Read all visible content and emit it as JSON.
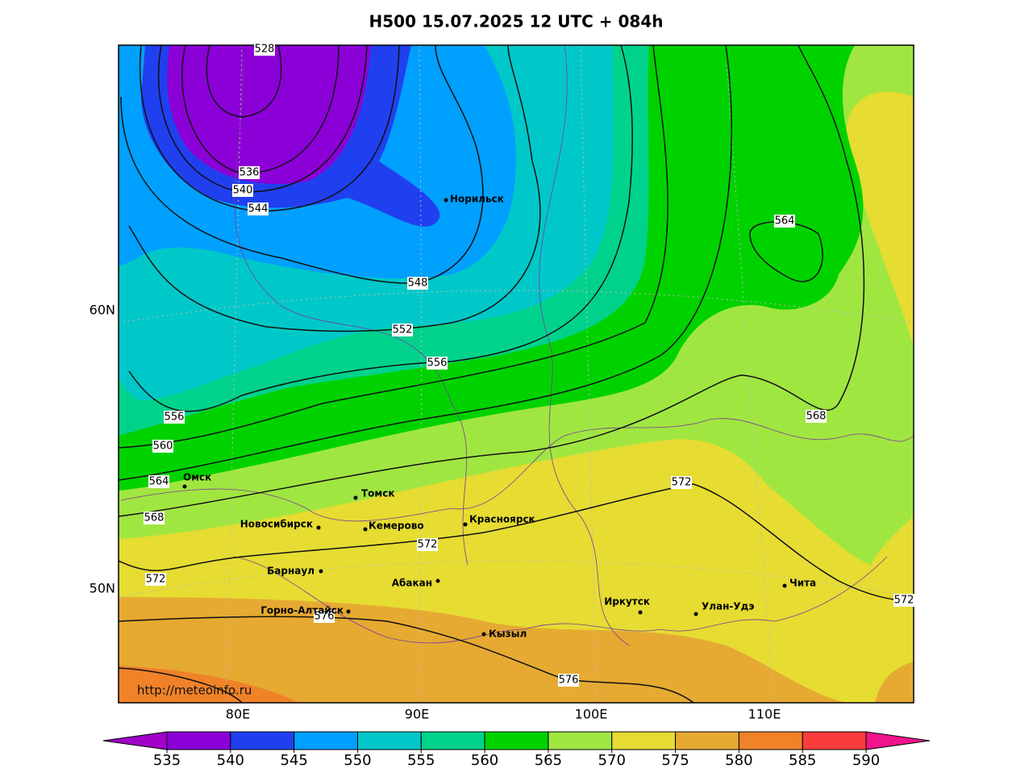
{
  "title": "H500  15.07.2025 12 UTC + 084h",
  "credit": "http://meteoinfo.ru",
  "lon_labels": [
    "80E",
    "90E",
    "100E",
    "110E"
  ],
  "lat_labels": [
    "60N",
    "50N"
  ],
  "cities": [
    "Норильск",
    "Омск",
    "Томск",
    "Новосибирск",
    "Кемерово",
    "Красноярск",
    "Барнаул",
    "Абакан",
    "Горно-Алтайск",
    "Кызыл",
    "Иркутск",
    "Улан-Удэ",
    "Чита"
  ],
  "contour_labels": [
    528,
    536,
    540,
    544,
    548,
    552,
    556,
    556,
    560,
    564,
    564,
    568,
    568,
    572,
    572,
    572,
    572,
    576,
    576
  ],
  "colorbar": {
    "ticks": [
      535,
      540,
      545,
      550,
      555,
      560,
      565,
      570,
      575,
      580,
      585,
      590
    ],
    "colors": [
      "#8c00d8",
      "#2040f0",
      "#00a0ff",
      "#00c8c8",
      "#00d28c",
      "#00d200",
      "#a0e641",
      "#e6dc32",
      "#e6aa32",
      "#f08228",
      "#fa3c3c"
    ],
    "under_color": "#a000c8",
    "over_color": "#f0148c"
  }
}
